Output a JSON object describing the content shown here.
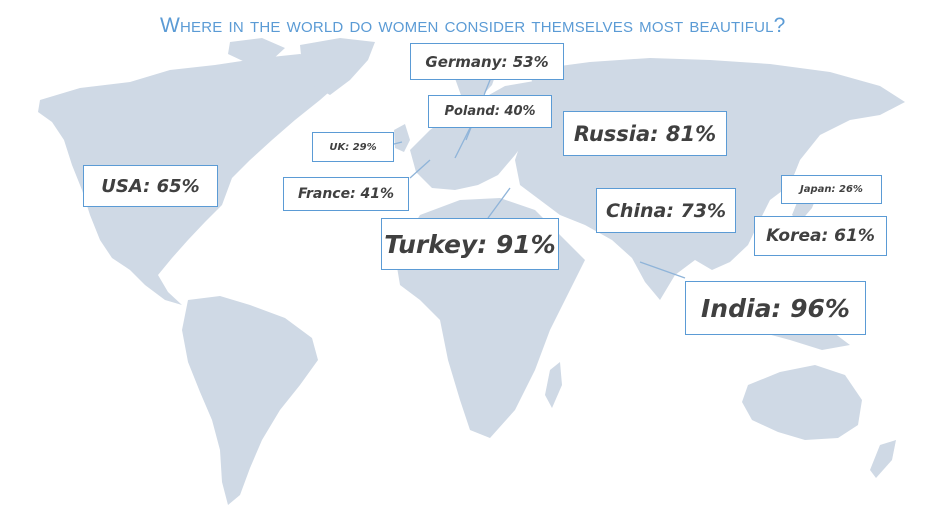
{
  "title": "Where in the world do women consider themselves most beautiful?",
  "colors": {
    "accent": "#5b9bd5",
    "land": "#cfd9e5",
    "text": "#404040"
  },
  "callouts": {
    "germany": "Germany: 53%",
    "poland": "Poland: 40%",
    "uk": "UK: 29%",
    "russia": "Russia: 81%",
    "usa": "USA: 65%",
    "france": "France: 41%",
    "japan": "Japan: 26%",
    "china": "China: 73%",
    "korea": "Korea: 61%",
    "turkey": "Turkey: 91%",
    "india": "India: 96%"
  }
}
